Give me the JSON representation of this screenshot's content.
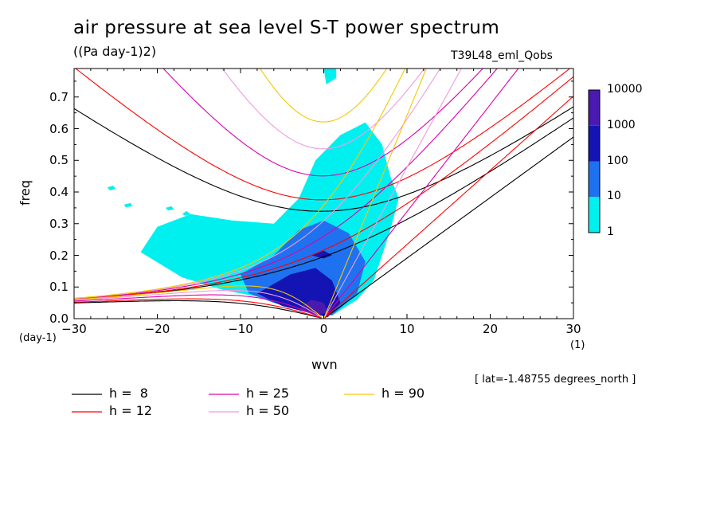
{
  "title": "air pressure at sea level S-T power spectrum",
  "units": "((Pa day-1)2)",
  "run": "T39L48_eml_Qobs",
  "lat_label": "[ lat=-1.48755 degrees_north ]",
  "y_unit": "(day-1)",
  "x_unit": "(1)",
  "chart_data": {
    "type": "heatmap",
    "xlabel": "wvn",
    "ylabel": "freq",
    "xlim": [
      -30,
      30
    ],
    "ylim": [
      0,
      0.79
    ],
    "xticks": [
      "-30",
      "-20",
      "-10",
      "0",
      "10",
      "20",
      "30"
    ],
    "yticks": [
      "0.0",
      "0.1",
      "0.2",
      "0.3",
      "0.4",
      "0.5",
      "0.6",
      "0.7"
    ],
    "grid": false,
    "colorbar": {
      "levels": [
        "1",
        "10",
        "100",
        "1000",
        "10000"
      ],
      "colors": [
        "#00f0f0",
        "#1e72f0",
        "#1414b4",
        "#4a1ab0"
      ]
    },
    "dispersion_curves": [
      {
        "h": 8,
        "label": "h =  8",
        "color": "#000000"
      },
      {
        "h": 12,
        "label": "h = 12",
        "color": "#ff0000"
      },
      {
        "h": 25,
        "label": "h = 25",
        "color": "#dd00aa"
      },
      {
        "h": 50,
        "label": "h = 50",
        "color": "#f09ae0"
      },
      {
        "h": 90,
        "label": "h = 90",
        "color": "#f5c800"
      }
    ],
    "power_regions": [
      {
        "level": 1,
        "points": [
          [
            -20,
            0.29
          ],
          [
            -16,
            0.33
          ],
          [
            -11,
            0.31
          ],
          [
            -6,
            0.3
          ],
          [
            -3,
            0.38
          ],
          [
            -1,
            0.5
          ],
          [
            2,
            0.58
          ],
          [
            5,
            0.62
          ],
          [
            7,
            0.55
          ],
          [
            8,
            0.45
          ],
          [
            9,
            0.38
          ],
          [
            8,
            0.28
          ],
          [
            7,
            0.2
          ],
          [
            6,
            0.12
          ],
          [
            4,
            0.06
          ],
          [
            1,
            0.01
          ],
          [
            -2,
            0.03
          ],
          [
            -6,
            0.06
          ],
          [
            -12,
            0.09
          ],
          [
            -17,
            0.13
          ],
          [
            -22,
            0.21
          ]
        ]
      },
      {
        "level": 1,
        "points": [
          [
            0,
            0.79
          ],
          [
            1.5,
            0.79
          ],
          [
            1.5,
            0.76
          ],
          [
            0.3,
            0.74
          ]
        ]
      },
      {
        "level": 1,
        "points": [
          [
            -17,
            0.33
          ],
          [
            -16.5,
            0.34
          ],
          [
            -16,
            0.33
          ],
          [
            -16.6,
            0.325
          ]
        ]
      },
      {
        "level": 1,
        "points": [
          [
            -26,
            0.415
          ],
          [
            -25.3,
            0.42
          ],
          [
            -25,
            0.41
          ],
          [
            -25.7,
            0.405
          ]
        ]
      },
      {
        "level": 1,
        "points": [
          [
            -24,
            0.36
          ],
          [
            -23.2,
            0.365
          ],
          [
            -23,
            0.355
          ],
          [
            -23.8,
            0.352
          ]
        ]
      },
      {
        "level": 1,
        "points": [
          [
            -19,
            0.35
          ],
          [
            -18.3,
            0.355
          ],
          [
            -18,
            0.345
          ],
          [
            -18.7,
            0.342
          ]
        ]
      },
      {
        "level": 10,
        "points": [
          [
            -10,
            0.14
          ],
          [
            -6,
            0.2
          ],
          [
            -3,
            0.28
          ],
          [
            0,
            0.31
          ],
          [
            3,
            0.27
          ],
          [
            5,
            0.18
          ],
          [
            4,
            0.08
          ],
          [
            1,
            0.01
          ],
          [
            -2,
            0.02
          ],
          [
            -6,
            0.05
          ],
          [
            -9,
            0.08
          ]
        ]
      },
      {
        "level": 100,
        "points": [
          [
            -8,
            0.08
          ],
          [
            -4,
            0.14
          ],
          [
            -1,
            0.16
          ],
          [
            1,
            0.12
          ],
          [
            2,
            0.05
          ],
          [
            0.5,
            0.005
          ],
          [
            -2,
            0.02
          ],
          [
            -5,
            0.04
          ]
        ]
      },
      {
        "level": 100,
        "points": [
          [
            -1.5,
            0.2
          ],
          [
            0,
            0.215
          ],
          [
            1,
            0.2
          ],
          [
            0,
            0.19
          ]
        ]
      },
      {
        "level": 1000,
        "points": [
          [
            -3,
            0.03
          ],
          [
            -1.5,
            0.06
          ],
          [
            0,
            0.05
          ],
          [
            0.5,
            0.02
          ],
          [
            -1,
            0.01
          ]
        ]
      }
    ]
  },
  "legend": [
    {
      "label": "h =  8",
      "color": "#000000"
    },
    {
      "label": "h = 12",
      "color": "#ff0000"
    },
    {
      "label": "h = 25",
      "color": "#dd00aa"
    },
    {
      "label": "h = 50",
      "color": "#f09ae0"
    },
    {
      "label": "h = 90",
      "color": "#f5c800"
    }
  ]
}
